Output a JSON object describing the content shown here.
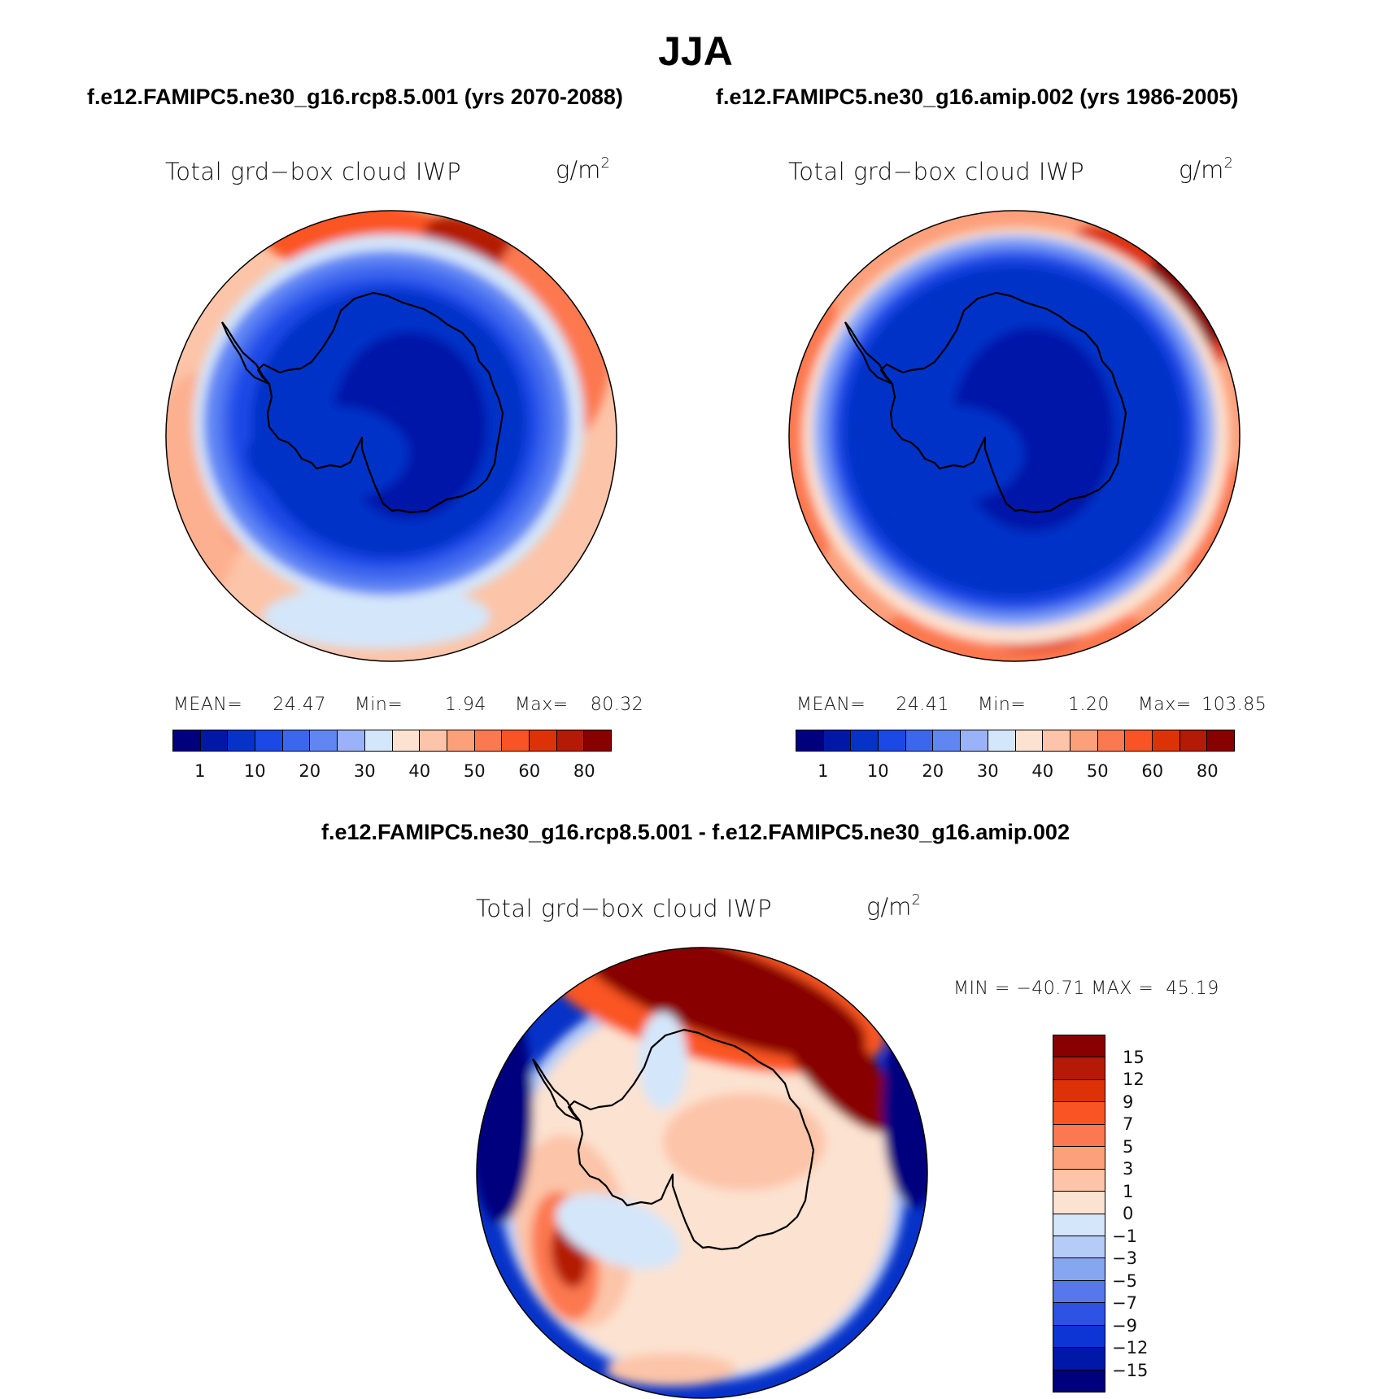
{
  "figure": {
    "season_title": "JJA",
    "panel1_header": "f.e12.FAMIPC5.ne30_g16.rcp8.5.001 (yrs 2070-2088)",
    "panel2_header": "f.e12.FAMIPC5.ne30_g16.amip.002 (yrs 1986-2005)",
    "diff_header": "f.e12.FAMIPC5.ne30_g16.rcp8.5.001 - f.e12.FAMIPC5.ne30_g16.amip.002"
  },
  "panels": [
    {
      "variable": "Total grd−box cloud IWP",
      "units_base": "g/m",
      "units_exp": "2",
      "mean_label": "MEAN=",
      "mean": "24.47",
      "min_label": "Min=",
      "min": "1.94",
      "max_label": "Max=",
      "max": "80.32"
    },
    {
      "variable": "Total grd−box cloud IWP",
      "units_base": "g/m",
      "units_exp": "2",
      "mean_label": "MEAN=",
      "mean": "24.41",
      "min_label": "Min=",
      "min": "1.20",
      "max_label": "Max=",
      "max": "103.85"
    }
  ],
  "diff_panel": {
    "variable": "Total grd−box cloud IWP",
    "units_base": "g/m",
    "units_exp": "2",
    "minmax": "MIN = −40.71 MAX =  45.19"
  },
  "colorbar_abs": {
    "colors": [
      "#00007f",
      "#0018a8",
      "#0632c8",
      "#1c48e6",
      "#3d66ee",
      "#6186f4",
      "#9ab2f8",
      "#d4e6fa",
      "#fce2d0",
      "#fcc4a8",
      "#fca07c",
      "#fc7850",
      "#fa5424",
      "#dd3208",
      "#b41a06",
      "#880000"
    ],
    "tick_labels": [
      "1",
      "10",
      "20",
      "30",
      "40",
      "50",
      "60",
      "80"
    ]
  },
  "colorbar_diff": {
    "colors_top_to_bottom": [
      "#880000",
      "#b41a06",
      "#dd3208",
      "#fa5424",
      "#fc7850",
      "#fca07c",
      "#fcc4a8",
      "#fce2d0",
      "#d4e6fa",
      "#b6ccf8",
      "#86a6f2",
      "#5678ec",
      "#2d52e4",
      "#0d34d4",
      "#0018a8",
      "#00007f"
    ],
    "tick_labels_top_to_bottom": [
      "15",
      "12",
      "9",
      "7",
      "5",
      "3",
      "1",
      "0",
      "−1",
      "−3",
      "−5",
      "−7",
      "−9",
      "−12",
      "−15"
    ]
  },
  "colors": {
    "coast_line": "#000000",
    "map_border": "#000000"
  }
}
